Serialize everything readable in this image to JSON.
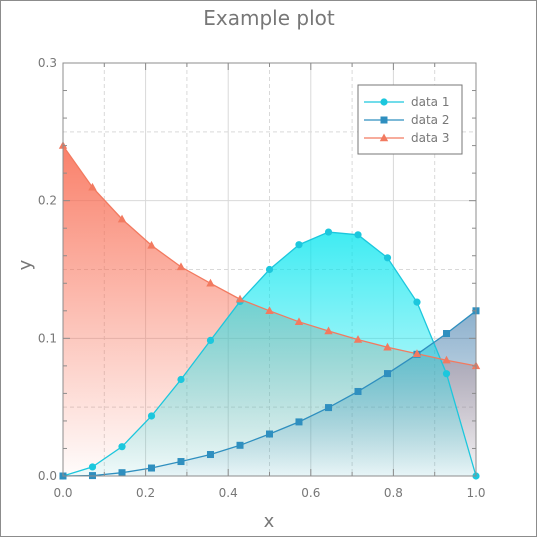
{
  "chart_data": {
    "type": "line",
    "title": "Example plot",
    "xlabel": "x",
    "ylabel": "y",
    "xlim": [
      0.0,
      1.0
    ],
    "ylim": [
      0.0,
      0.3
    ],
    "x_ticks": [
      "0.0",
      "0.2",
      "0.4",
      "0.6",
      "0.8",
      "1.0"
    ],
    "y_ticks": [
      "0.0",
      "0.1",
      "0.2",
      "0.3"
    ],
    "grid": true,
    "legend_position": "top-right",
    "x": [
      0.0,
      0.0714,
      0.1429,
      0.2143,
      0.2857,
      0.3571,
      0.4286,
      0.5,
      0.5714,
      0.6429,
      0.7143,
      0.7857,
      0.8571,
      0.9286,
      1.0
    ],
    "series": [
      {
        "name": "data 1",
        "color": "#1cc7dd",
        "marker": "circle",
        "values": [
          0.0,
          0.0066,
          0.0213,
          0.0436,
          0.0701,
          0.0985,
          0.1268,
          0.15,
          0.168,
          0.1772,
          0.1752,
          0.1585,
          0.1263,
          0.0743,
          0.0
        ]
      },
      {
        "name": "data 2",
        "color": "#2f8fbf",
        "marker": "square",
        "values": [
          0.0,
          0.0003,
          0.0024,
          0.0058,
          0.0105,
          0.0156,
          0.0223,
          0.0305,
          0.0393,
          0.0497,
          0.0614,
          0.0744,
          0.0884,
          0.1035,
          0.12
        ]
      },
      {
        "name": "data 3",
        "color": "#f27a60",
        "marker": "triangle",
        "values": [
          0.24,
          0.2097,
          0.1866,
          0.1675,
          0.1519,
          0.14,
          0.1284,
          0.12,
          0.112,
          0.1053,
          0.0991,
          0.0935,
          0.0888,
          0.0841,
          0.08
        ]
      }
    ]
  }
}
